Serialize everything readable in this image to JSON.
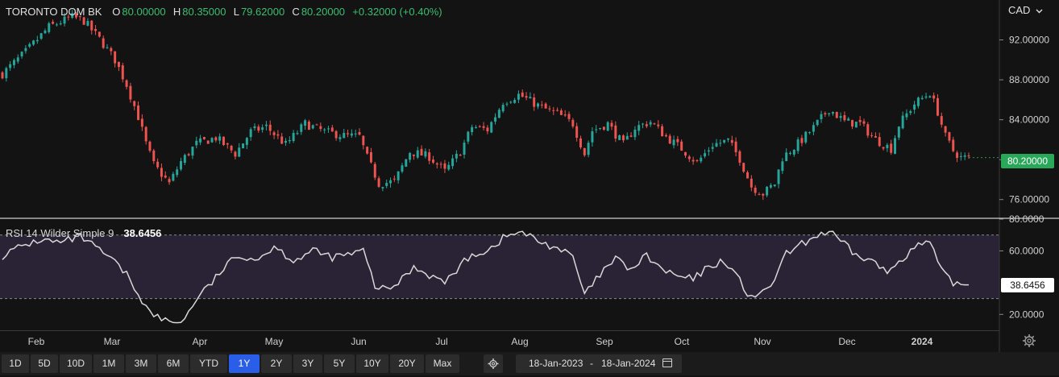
{
  "legend": {
    "name": "TORONTO DOM BK",
    "open_label": "O",
    "open": "80.00000",
    "high_label": "H",
    "high": "80.35000",
    "low_label": "L",
    "low": "79.62000",
    "close_label": "C",
    "close": "80.20000",
    "change": "+0.32000 (+0.40%)"
  },
  "currency": "CAD",
  "currency_icon": "chevron-down-icon",
  "rsi": {
    "label": "RSI 14 Wilder Simple 9",
    "value": "38.6456",
    "value_num": 38.6456
  },
  "colors": {
    "up": "#26a69a",
    "down": "#ef5350",
    "up_legend": "#3dbd70",
    "price_tag": "#2aa85a",
    "rsi_line": "#d8d8d8",
    "rsi_band": "#2a2335",
    "active_button": "#2a5ee8"
  },
  "timeframes": [
    "1D",
    "5D",
    "10D",
    "1M",
    "3M",
    "6M",
    "YTD",
    "1Y",
    "2Y",
    "3Y",
    "5Y",
    "10Y",
    "20Y",
    "Max"
  ],
  "active_timeframe": "1Y",
  "date_range": {
    "start": "18-Jan-2023",
    "separator": "-",
    "end": "18-Jan-2024"
  },
  "chart_data": [
    {
      "type": "candlestick",
      "title": "",
      "x_ticks": [
        "Feb",
        "Mar",
        "Apr",
        "May",
        "Jun",
        "Jul",
        "Aug",
        "Sep",
        "Oct",
        "Nov",
        "Dec",
        "2024"
      ],
      "y_ticks": [
        "92.00000",
        "88.00000",
        "84.00000",
        "80.00000",
        "76.00000"
      ],
      "ylim": [
        74.2,
        96.0
      ],
      "last_price": "80.20000",
      "last_price_num": 80.2,
      "close_path": [
        [
          0,
          88.6
        ],
        [
          6,
          90.8
        ],
        [
          12,
          93.3
        ],
        [
          18,
          94.3
        ],
        [
          21,
          93.9
        ],
        [
          25,
          92.1
        ],
        [
          29,
          90.0
        ],
        [
          32,
          87.5
        ],
        [
          35,
          84.3
        ],
        [
          37,
          81.6
        ],
        [
          39,
          79.5
        ],
        [
          43,
          77.6
        ],
        [
          46,
          79.8
        ],
        [
          50,
          81.6
        ],
        [
          55,
          82.2
        ],
        [
          60,
          80.6
        ],
        [
          64,
          82.8
        ],
        [
          68,
          83.3
        ],
        [
          73,
          81.5
        ],
        [
          78,
          83.6
        ],
        [
          83,
          82.8
        ],
        [
          88,
          82.4
        ],
        [
          92,
          82.3
        ],
        [
          94,
          80.2
        ],
        [
          97,
          77.6
        ],
        [
          101,
          77.8
        ],
        [
          105,
          80.8
        ],
        [
          110,
          80.3
        ],
        [
          114,
          78.8
        ],
        [
          118,
          80.8
        ],
        [
          121,
          83.3
        ],
        [
          125,
          83.0
        ],
        [
          129,
          85.8
        ],
        [
          133,
          86.5
        ],
        [
          135,
          86.1
        ],
        [
          139,
          85.2
        ],
        [
          143,
          84.6
        ],
        [
          147,
          83.6
        ],
        [
          150,
          80.6
        ],
        [
          152,
          82.9
        ],
        [
          156,
          83.6
        ],
        [
          160,
          81.5
        ],
        [
          163,
          83.2
        ],
        [
          167,
          83.8
        ],
        [
          171,
          82.3
        ],
        [
          175,
          81.1
        ],
        [
          179,
          79.7
        ],
        [
          183,
          81.5
        ],
        [
          187,
          81.9
        ],
        [
          190,
          80.1
        ],
        [
          193,
          77.3
        ],
        [
          196,
          76.6
        ],
        [
          199,
          77.6
        ],
        [
          201,
          80.2
        ],
        [
          205,
          81.6
        ],
        [
          209,
          83.2
        ],
        [
          213,
          85.1
        ],
        [
          217,
          83.8
        ],
        [
          221,
          83.6
        ],
        [
          225,
          82.0
        ],
        [
          229,
          81.1
        ],
        [
          231,
          83.5
        ],
        [
          235,
          85.6
        ],
        [
          239,
          86.7
        ],
        [
          241,
          84.8
        ],
        [
          243,
          82.3
        ],
        [
          245,
          80.9
        ],
        [
          247,
          80.2
        ]
      ],
      "candle_count": 250
    },
    {
      "type": "line",
      "title": "",
      "name": "RSI 14 Wilder Simple 9",
      "y_ticks": [
        "80.0000",
        "60.0000",
        "20.0000"
      ],
      "ylim": [
        10,
        80
      ],
      "bands": [
        30,
        70
      ],
      "rsi_path": [
        [
          0,
          57
        ],
        [
          5,
          63
        ],
        [
          10,
          67
        ],
        [
          15,
          65
        ],
        [
          20,
          69
        ],
        [
          24,
          62
        ],
        [
          28,
          55
        ],
        [
          32,
          45
        ],
        [
          35,
          33
        ],
        [
          38,
          21
        ],
        [
          41,
          17
        ],
        [
          44,
          15
        ],
        [
          47,
          17
        ],
        [
          50,
          30
        ],
        [
          54,
          40
        ],
        [
          58,
          52
        ],
        [
          62,
          57
        ],
        [
          66,
          55
        ],
        [
          70,
          63
        ],
        [
          75,
          54
        ],
        [
          80,
          60
        ],
        [
          85,
          56
        ],
        [
          90,
          58
        ],
        [
          93,
          60
        ],
        [
          96,
          38
        ],
        [
          99,
          35
        ],
        [
          102,
          40
        ],
        [
          106,
          50
        ],
        [
          110,
          45
        ],
        [
          114,
          40
        ],
        [
          117,
          48
        ],
        [
          121,
          58
        ],
        [
          125,
          60
        ],
        [
          129,
          68
        ],
        [
          133,
          72
        ],
        [
          136,
          69
        ],
        [
          139,
          65
        ],
        [
          143,
          62
        ],
        [
          147,
          56
        ],
        [
          150,
          32
        ],
        [
          154,
          45
        ],
        [
          158,
          55
        ],
        [
          162,
          48
        ],
        [
          166,
          57
        ],
        [
          170,
          48
        ],
        [
          174,
          44
        ],
        [
          178,
          42
        ],
        [
          182,
          50
        ],
        [
          186,
          54
        ],
        [
          189,
          45
        ],
        [
          192,
          33
        ],
        [
          195,
          31
        ],
        [
          198,
          38
        ],
        [
          202,
          58
        ],
        [
          206,
          64
        ],
        [
          210,
          70
        ],
        [
          213,
          72
        ],
        [
          216,
          66
        ],
        [
          220,
          57
        ],
        [
          224,
          54
        ],
        [
          228,
          46
        ],
        [
          231,
          54
        ],
        [
          235,
          62
        ],
        [
          239,
          66
        ],
        [
          241,
          52
        ],
        [
          243,
          44
        ],
        [
          245,
          40
        ],
        [
          247,
          38.6
        ]
      ]
    }
  ]
}
